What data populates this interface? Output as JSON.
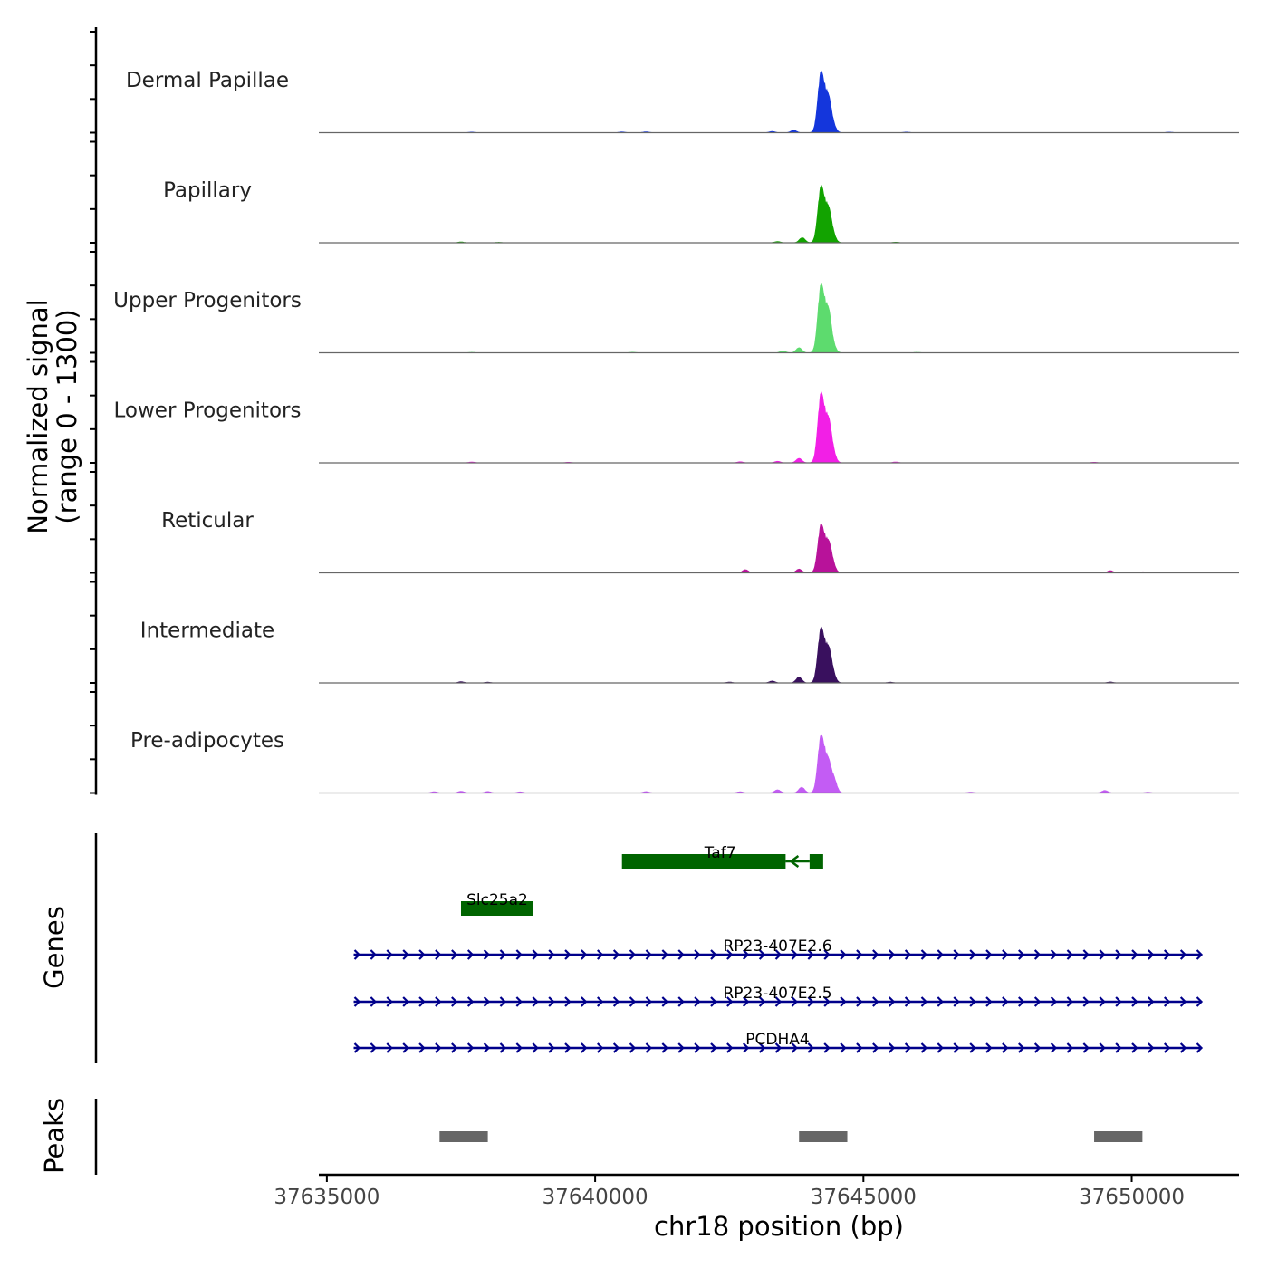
{
  "chart_data": {
    "type": "area",
    "y_axis_title_line1": "Normalized signal",
    "y_axis_title_line2": "(range 0 - 1300)",
    "ylim": [
      0,
      1300
    ],
    "x_axis_title": "chr18 position (bp)",
    "xlim": [
      37634850,
      37652000
    ],
    "x_ticks": [
      37635000,
      37640000,
      37645000,
      37650000
    ],
    "x_tick_labels": [
      "37635000",
      "37640000",
      "37645000",
      "37650000"
    ],
    "genes_label": "Genes",
    "peaks_label": "Peaks",
    "tracks": [
      {
        "name": "Dermal Papillae",
        "color": "#1436DC",
        "main_peak": 1160,
        "side_peaks": [
          [
            37644400,
            80
          ],
          [
            37643700,
            38
          ],
          [
            37643300,
            20
          ],
          [
            37637700,
            10
          ],
          [
            37640500,
            12
          ],
          [
            37640950,
            14
          ],
          [
            37645800,
            10
          ],
          [
            37650700,
            9
          ]
        ]
      },
      {
        "name": "Papillary",
        "color": "#12A300",
        "main_peak": 1080,
        "side_peaks": [
          [
            37644400,
            100
          ],
          [
            37643860,
            80
          ],
          [
            37643400,
            20
          ],
          [
            37637500,
            14
          ],
          [
            37638200,
            8
          ],
          [
            37645600,
            10
          ]
        ]
      },
      {
        "name": "Upper Progenitors",
        "color": "#5DDB6E",
        "main_peak": 1300,
        "side_peaks": [
          [
            37644380,
            110
          ],
          [
            37643800,
            80
          ],
          [
            37643500,
            30
          ],
          [
            37637700,
            8
          ],
          [
            37640700,
            10
          ],
          [
            37646000,
            8
          ]
        ]
      },
      {
        "name": "Lower Progenitors",
        "color": "#F21FE6",
        "main_peak": 1330,
        "side_peaks": [
          [
            37644400,
            140
          ],
          [
            37643800,
            70
          ],
          [
            37643400,
            25
          ],
          [
            37637700,
            14
          ],
          [
            37639500,
            10
          ],
          [
            37642700,
            18
          ],
          [
            37645600,
            14
          ],
          [
            37649300,
            10
          ]
        ]
      },
      {
        "name": "Reticular",
        "color": "#B8129A",
        "main_peak": 920,
        "side_peaks": [
          [
            37644400,
            120
          ],
          [
            37643800,
            60
          ],
          [
            37642800,
            50
          ],
          [
            37637500,
            12
          ],
          [
            37649600,
            36
          ],
          [
            37650200,
            18
          ]
        ]
      },
      {
        "name": "Intermediate",
        "color": "#39105E",
        "main_peak": 1050,
        "side_peaks": [
          [
            37644400,
            130
          ],
          [
            37643800,
            90
          ],
          [
            37643300,
            30
          ],
          [
            37637500,
            20
          ],
          [
            37638000,
            12
          ],
          [
            37642500,
            14
          ],
          [
            37645500,
            12
          ],
          [
            37649600,
            15
          ]
        ]
      },
      {
        "name": "Pre-adipocytes",
        "color": "#C35CF4",
        "main_peak": 1100,
        "side_peaks": [
          [
            37644450,
            150
          ],
          [
            37643850,
            90
          ],
          [
            37643400,
            50
          ],
          [
            37637000,
            20
          ],
          [
            37637500,
            28
          ],
          [
            37638000,
            24
          ],
          [
            37638600,
            18
          ],
          [
            37640950,
            22
          ],
          [
            37642700,
            20
          ],
          [
            37647000,
            14
          ],
          [
            37649500,
            40
          ],
          [
            37650300,
            12
          ]
        ]
      }
    ],
    "genes": [
      {
        "name": "Taf7",
        "start": 37640500,
        "end": 37644250,
        "strand": "-",
        "row": 0,
        "style": "block",
        "color": "#006400"
      },
      {
        "name": "Slc25a2",
        "start": 37637500,
        "end": 37638850,
        "strand": "+",
        "row": 1,
        "style": "block",
        "color": "#006400"
      },
      {
        "name": "RP23-407E2.6",
        "start": 37635500,
        "end": 37651300,
        "strand": "+",
        "row": 2,
        "style": "line",
        "color": "#00008B"
      },
      {
        "name": "RP23-407E2.5",
        "start": 37635500,
        "end": 37651300,
        "strand": "+",
        "row": 3,
        "style": "line",
        "color": "#00008B"
      },
      {
        "name": "PCDHA4",
        "start": 37635500,
        "end": 37651300,
        "strand": "+",
        "row": 4,
        "style": "line",
        "color": "#00008B"
      }
    ],
    "peaks": [
      {
        "start": 37637100,
        "end": 37638000
      },
      {
        "start": 37643800,
        "end": 37644700
      },
      {
        "start": 37649300,
        "end": 37650200
      }
    ],
    "peak_color": "#666666"
  }
}
